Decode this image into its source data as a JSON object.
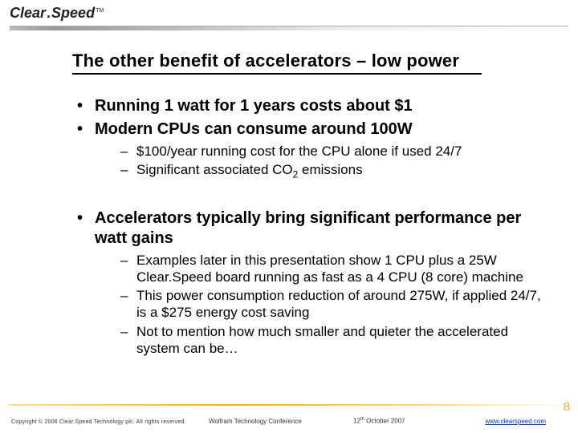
{
  "logo": {
    "brand": "Clear",
    "sep": ".",
    "brand2": "Speed",
    "tm": "TM"
  },
  "title": "The other benefit of accelerators – low power",
  "bullets": {
    "b1": "Running 1 watt for 1 years costs about $1",
    "b2": "Modern CPUs can consume around 100W",
    "b2_s1": "$100/year running cost for the CPU alone if used 24/7",
    "b2_s2_pre": "Significant associated CO",
    "b2_s2_sub": "2",
    "b2_s2_post": " emissions",
    "b3": "Accelerators typically bring significant performance per watt gains",
    "b3_s1": "Examples later in this presentation show 1 CPU plus a 25W Clear.Speed board running as fast as a 4 CPU (8 core) machine",
    "b3_s2": "This power consumption reduction of around 275W, if applied 24/7, is a $275 energy cost saving",
    "b3_s3": "Not to mention how much smaller and quieter the accelerated system can be…"
  },
  "footer": {
    "copyright": "Copyright © 2006 Clear.Speed Technology plc. All rights reserved.",
    "conference": "Wolfram Technology Conference",
    "date_pre": "12",
    "date_sup": "th",
    "date_post": " October 2007",
    "url": "www.clearspeed.com",
    "page": "8"
  },
  "colors": {
    "accent_gold": "#e4af3a",
    "link": "#0033cc",
    "text": "#000000",
    "background": "#ffffff"
  }
}
